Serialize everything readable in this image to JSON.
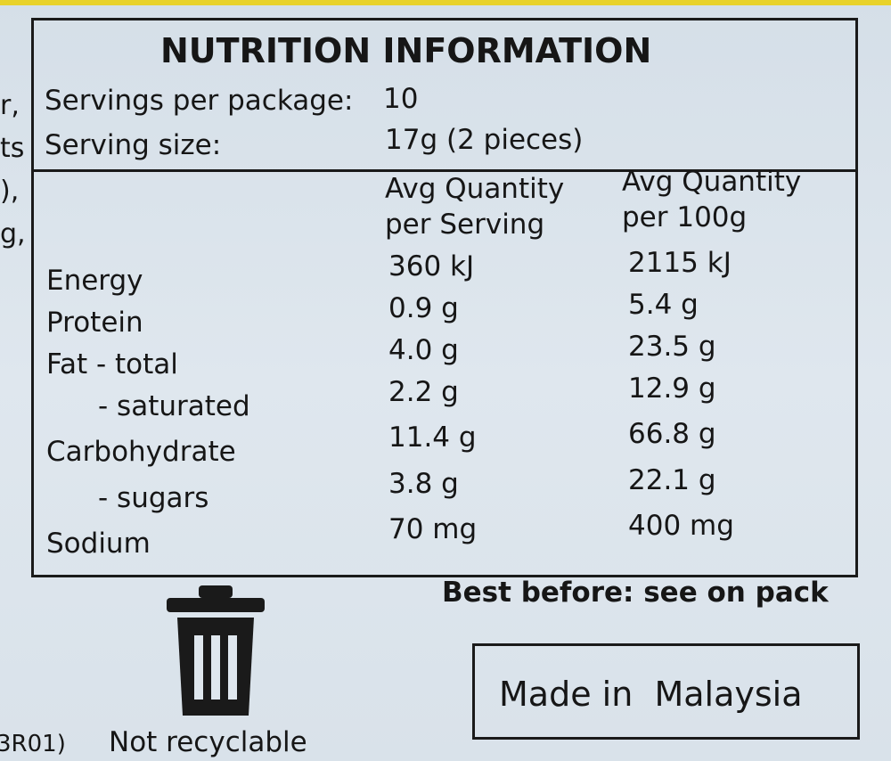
{
  "label": {
    "title": "NUTRITION INFORMATION",
    "servings_label": "Servings per package:",
    "servings_value": "10",
    "serving_size_label": "Serving size:",
    "serving_size_value": "17g (2 pieces)",
    "columns": [
      "Avg Quantity per Serving",
      "Avg Quantity per 100g"
    ],
    "rows": [
      [
        "Energy",
        "360 kJ",
        "2115 kJ"
      ],
      [
        "Protein",
        "0.9 g",
        "5.4 g"
      ],
      [
        "Fat - total",
        "4.0 g",
        "23.5 g"
      ],
      [
        "- saturated",
        "2.2 g",
        "12.9 g"
      ],
      [
        "Carbohydrate",
        "11.4 g",
        "66.8 g"
      ],
      [
        "- sugars",
        "3.8 g",
        "22.1 g"
      ],
      [
        "Sodium",
        "70 mg",
        "400 mg"
      ]
    ],
    "best_before": "Best before: see on pack",
    "origin": "Made in  Malaysia",
    "recycle": "Not recyclable",
    "edge_fragments": [
      "r,",
      "ts",
      "),",
      "g,",
      "3R01)"
    ]
  }
}
